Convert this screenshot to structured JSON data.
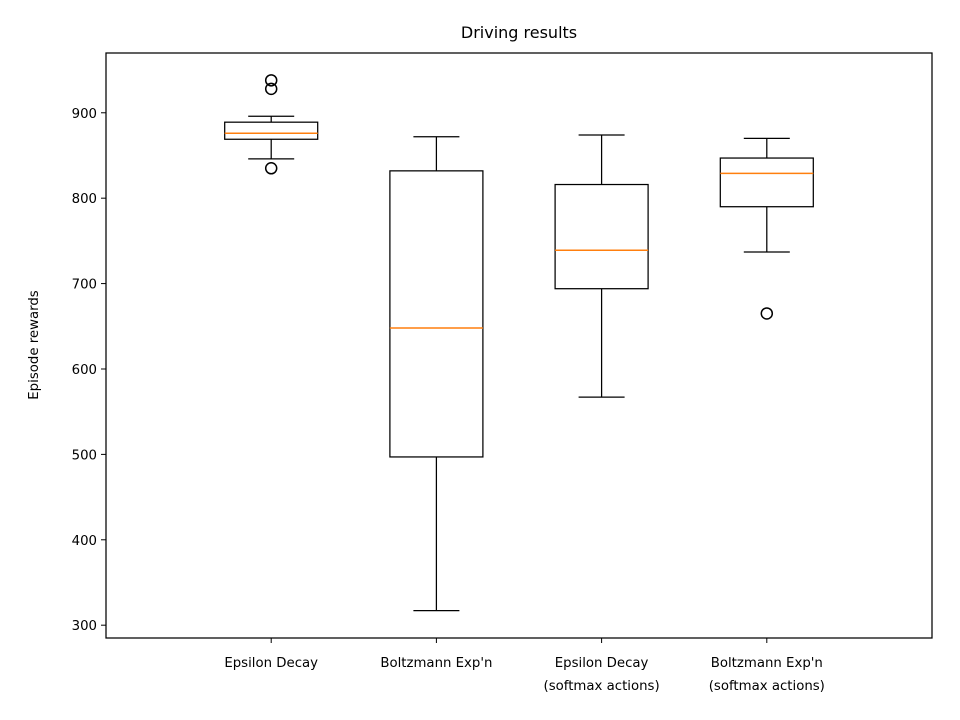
{
  "chart_data": {
    "type": "box",
    "title": "Driving results",
    "xlabel": "",
    "ylabel": "Episode rewards",
    "ylim": [
      285,
      970
    ],
    "yticks": [
      300,
      400,
      500,
      600,
      700,
      800,
      900
    ],
    "grid": false,
    "legend": null,
    "colors": {
      "box": "#000000",
      "median": "#ff7f0e",
      "background": "#ffffff"
    },
    "categories": [
      [
        "Epsilon Decay"
      ],
      [
        "Boltzmann Exp'n"
      ],
      [
        "Epsilon Decay",
        "(softmax actions)"
      ],
      [
        "Boltzmann Exp'n",
        "(softmax actions)"
      ]
    ],
    "boxes": [
      {
        "whisker_low": 846,
        "q1": 869,
        "median": 876,
        "q3": 889,
        "whisker_high": 896,
        "outliers": [
          835,
          928,
          938
        ]
      },
      {
        "whisker_low": 317,
        "q1": 497,
        "median": 648,
        "q3": 832,
        "whisker_high": 872,
        "outliers": []
      },
      {
        "whisker_low": 567,
        "q1": 694,
        "median": 739,
        "q3": 816,
        "whisker_high": 874,
        "outliers": []
      },
      {
        "whisker_low": 737,
        "q1": 790,
        "median": 829,
        "q3": 847,
        "whisker_high": 870,
        "outliers": [
          665
        ]
      }
    ]
  }
}
